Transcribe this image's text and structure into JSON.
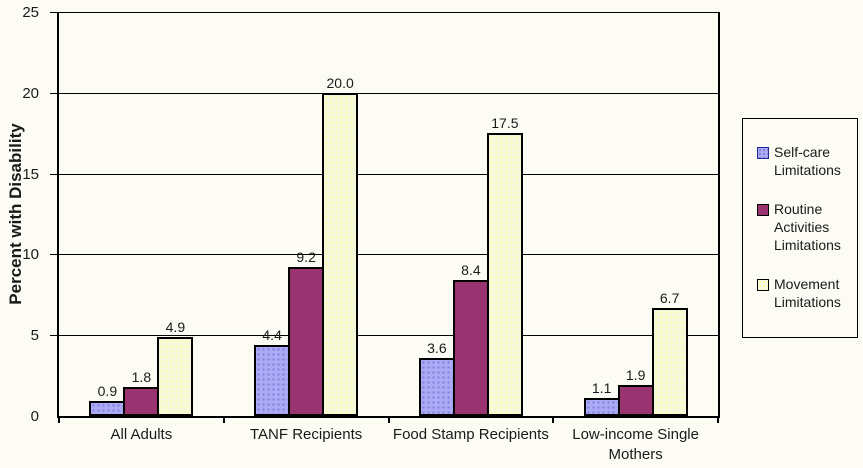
{
  "chart_data": {
    "type": "bar",
    "title": "",
    "xlabel": "",
    "ylabel": "Percent with Disability",
    "ylim": [
      0,
      25
    ],
    "yticks": [
      0,
      5,
      10,
      15,
      20,
      25
    ],
    "grid": true,
    "legend_position": "right",
    "value_labels": true,
    "value_label_decimals": 1,
    "categories": [
      "All Adults",
      "TANF Recipients",
      "Food Stamp Recipients",
      "Low-income Single Mothers"
    ],
    "series": [
      {
        "name": "Self-care Limitations",
        "values": [
          0.9,
          4.4,
          3.6,
          1.1
        ],
        "fill": "#ABABF5",
        "dot": "#7F7FDE",
        "border": "#000000",
        "swatch_border": "#26269B"
      },
      {
        "name": "Routine Activities Limitations",
        "values": [
          1.8,
          9.2,
          8.4,
          1.9
        ],
        "fill": "#993470",
        "dot": null,
        "border": "#000000",
        "swatch_border": "#000000"
      },
      {
        "name": "Movement Limitations",
        "values": [
          4.9,
          20.0,
          17.5,
          6.7
        ],
        "fill": "#F5F8DB",
        "dot": "#FFFFAE",
        "border": "#000000",
        "swatch_border": "#000000"
      }
    ]
  }
}
